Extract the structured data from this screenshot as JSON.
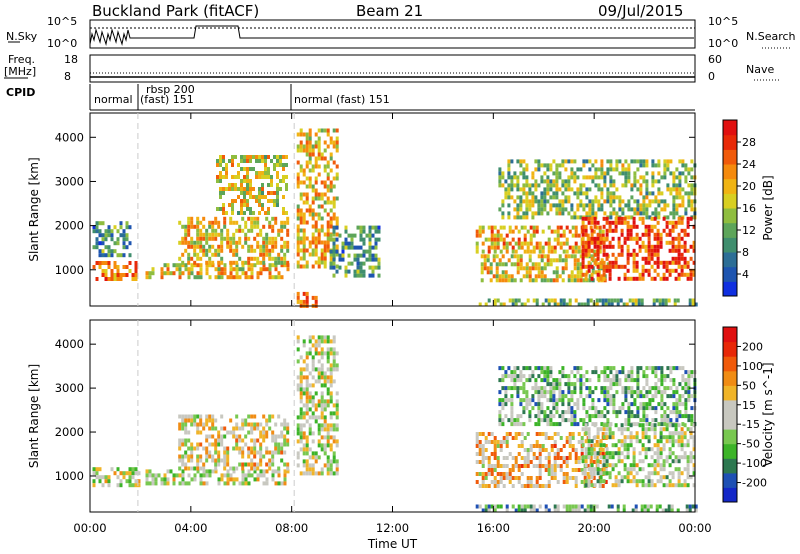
{
  "header": {
    "title": "Buckland Park (fitACF)",
    "beam": "Beam 21",
    "date": "09/Jul/2015"
  },
  "strip": {
    "nsky_label": "N.Sky",
    "nsearch_label": "N.Search",
    "freq_label_1": "Freq.",
    "freq_label_2": "[MHz]",
    "nave_label": "Nave",
    "cpid_label": "CPID",
    "nsky_ticks": [
      "10^5",
      "10^0"
    ],
    "freq_ticks": [
      "18",
      "8"
    ],
    "nave_ticks": [
      "60",
      "0"
    ],
    "cpid_segments": [
      {
        "label": "normal"
      },
      {
        "label": "rbsp 200"
      },
      {
        "label": "(fast) 151"
      },
      {
        "label": "normal (fast) 151"
      }
    ]
  },
  "chart_data": [
    {
      "type": "heatmap",
      "title": "",
      "xlabel": "Time UT",
      "ylabel": "Slant Range [km]",
      "xlim": [
        0,
        24
      ],
      "ylim": [
        180,
        4550
      ],
      "x_ticks": [
        "00:00",
        "04:00",
        "08:00",
        "12:00",
        "16:00",
        "20:00",
        "00:00"
      ],
      "y_ticks": [
        1000,
        2000,
        3000,
        4000
      ],
      "colorbar": {
        "label": "Power [dB]",
        "ticks": [
          "4",
          "8",
          "12",
          "16",
          "20",
          "24",
          "28"
        ],
        "colors": [
          "#1030e0",
          "#1e55b0",
          "#2c6e96",
          "#3f8e6e",
          "#5da55a",
          "#8fbd3f",
          "#d8cf22",
          "#f0b414",
          "#f58a0d",
          "#f05a0a",
          "#e82a08",
          "#e01010"
        ]
      },
      "echo_regions": [
        {
          "t0": 0.1,
          "t1": 1.9,
          "r0": 820,
          "r1": 1200,
          "level": 0.72
        },
        {
          "t0": 0.1,
          "t1": 1.6,
          "r0": 1300,
          "r1": 2100,
          "level": 0.3
        },
        {
          "t0": 2.2,
          "t1": 7.9,
          "r0": 850,
          "r1": 1150,
          "level": 0.6
        },
        {
          "t0": 3.5,
          "t1": 7.9,
          "r0": 1200,
          "r1": 2200,
          "level": 0.6
        },
        {
          "t0": 5.0,
          "t1": 7.8,
          "r0": 2300,
          "r1": 3600,
          "level": 0.55
        },
        {
          "t0": 8.2,
          "t1": 9.8,
          "r0": 1100,
          "r1": 4200,
          "level": 0.6
        },
        {
          "t0": 8.2,
          "t1": 9.0,
          "r0": 180,
          "r1": 500,
          "level": 0.7
        },
        {
          "t0": 9.5,
          "t1": 11.5,
          "r0": 900,
          "r1": 2000,
          "level": 0.3
        },
        {
          "t0": 15.3,
          "t1": 20.5,
          "r0": 1400,
          "r1": 2000,
          "level": 0.65
        },
        {
          "t0": 15.5,
          "t1": 20.5,
          "r0": 800,
          "r1": 1350,
          "level": 0.55
        },
        {
          "t0": 16.2,
          "t1": 24.0,
          "r0": 2200,
          "r1": 3500,
          "level": 0.45
        },
        {
          "t0": 19.5,
          "t1": 24.0,
          "r0": 800,
          "r1": 2200,
          "level": 0.85
        },
        {
          "t0": 15.3,
          "t1": 24.0,
          "r0": 180,
          "r1": 350,
          "level": 0.4
        }
      ]
    },
    {
      "type": "heatmap",
      "title": "",
      "xlabel": "Time UT",
      "ylabel": "Slant Range [km]",
      "xlim": [
        0,
        24
      ],
      "ylim": [
        180,
        4550
      ],
      "x_ticks": [
        "00:00",
        "04:00",
        "08:00",
        "12:00",
        "16:00",
        "20:00",
        "00:00"
      ],
      "y_ticks": [
        1000,
        2000,
        3000,
        4000
      ],
      "colorbar": {
        "label": "Velocity [m s^-1]",
        "ticks": [
          "200",
          "100",
          "50",
          "15",
          "-15",
          "-50",
          "-100",
          "-200"
        ],
        "colors": [
          "#1428c8",
          "#1e50b4",
          "#2d7850",
          "#3cb428",
          "#78c850",
          "#c8c8c0",
          "#c8c8c0",
          "#f0b428",
          "#f08c14",
          "#f05a0a",
          "#e82808",
          "#e01010"
        ]
      },
      "echo_regions": [
        {
          "t0": 0.1,
          "t1": 1.9,
          "r0": 820,
          "r1": 1200,
          "level": 0.48
        },
        {
          "t0": 2.2,
          "t1": 7.9,
          "r0": 850,
          "r1": 1150,
          "level": 0.5
        },
        {
          "t0": 3.5,
          "t1": 7.9,
          "r0": 1200,
          "r1": 2400,
          "level": 0.55
        },
        {
          "t0": 8.2,
          "t1": 9.8,
          "r0": 1100,
          "r1": 4200,
          "level": 0.48
        },
        {
          "t0": 15.3,
          "t1": 20.5,
          "r0": 800,
          "r1": 2000,
          "level": 0.62
        },
        {
          "t0": 16.2,
          "t1": 24.0,
          "r0": 2200,
          "r1": 3500,
          "level": 0.35
        },
        {
          "t0": 19.5,
          "t1": 24.0,
          "r0": 800,
          "r1": 2200,
          "level": 0.45
        },
        {
          "t0": 15.3,
          "t1": 24.0,
          "r0": 180,
          "r1": 350,
          "level": 0.35
        }
      ]
    }
  ]
}
